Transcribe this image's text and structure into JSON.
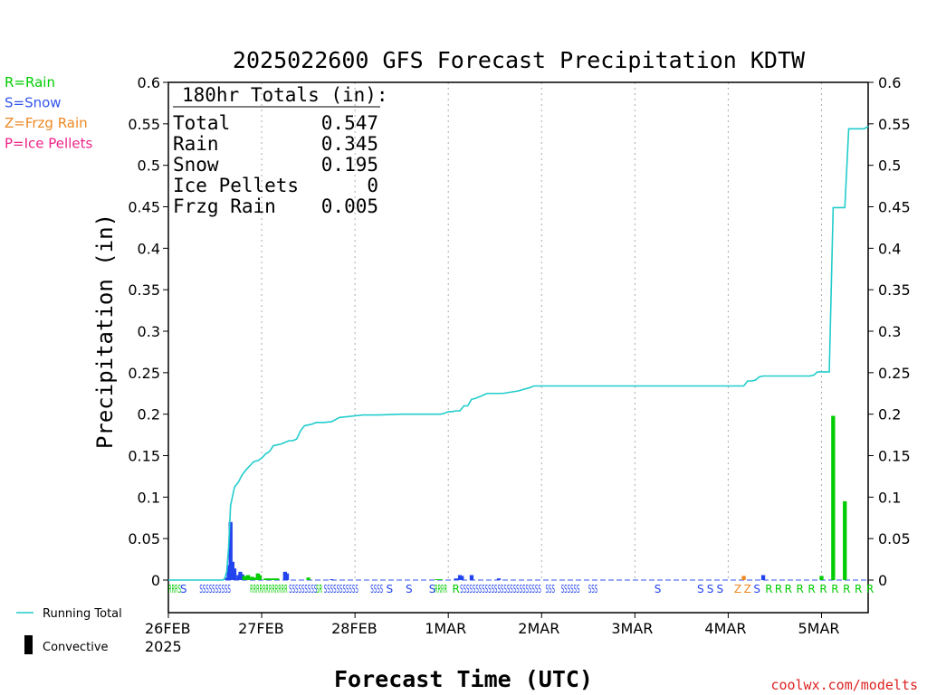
{
  "chart_data": {
    "type": "bar",
    "title": "2025022600 GFS Forecast Precipitation KDTW",
    "xlabel": "Forecast Time (UTC)",
    "ylabel": "Precipitation (in)",
    "ylim": [
      0,
      0.6
    ],
    "xlim_hours": [
      0,
      180
    ],
    "y_ticks": [
      "0",
      "0.05",
      "0.1",
      "0.15",
      "0.2",
      "0.25",
      "0.3",
      "0.35",
      "0.4",
      "0.45",
      "0.5",
      "0.55",
      "0.6"
    ],
    "x_ticks": [
      {
        "label": "26FEB",
        "hour": 0,
        "sub": "2025"
      },
      {
        "label": "27FEB",
        "hour": 24
      },
      {
        "label": "28FEB",
        "hour": 48
      },
      {
        "label": "1MAR",
        "hour": 72
      },
      {
        "label": "2MAR",
        "hour": 96
      },
      {
        "label": "3MAR",
        "hour": 120
      },
      {
        "label": "4MAR",
        "hour": 144
      },
      {
        "label": "5MAR",
        "hour": 168
      }
    ],
    "legend_types": [
      {
        "text": "R=Rain",
        "color": "#00cc00"
      },
      {
        "text": "S=Snow",
        "color": "#3355ee"
      },
      {
        "text": "Z=Frzg Rain",
        "color": "#ee8822"
      },
      {
        "text": "P=Ice Pellets",
        "color": "#ee2288"
      }
    ],
    "legend_series": [
      {
        "text": "Running Total",
        "kind": "line",
        "color": "#22cccc"
      },
      {
        "text": "Convective",
        "kind": "bar",
        "color": "#000000"
      }
    ],
    "totals": {
      "heading": "180hr Totals (in):",
      "rows": [
        {
          "label": "Total",
          "value": "0.547"
        },
        {
          "label": "Rain",
          "value": "0.345"
        },
        {
          "label": "Snow",
          "value": "0.195"
        },
        {
          "label": "Ice Pellets",
          "value": "0"
        },
        {
          "label": "Frzg Rain",
          "value": "0.005"
        }
      ]
    },
    "colors": {
      "R": "#00cc00",
      "S": "#2244ee",
      "Z": "#ee8822",
      "P": "#ee2288",
      "running_total": "#22cccc",
      "grid": "#aaaaaa",
      "axis": "#000000",
      "credit": "#dd2222"
    },
    "bars": [
      {
        "hour": 15,
        "value": 0.003,
        "type": "S"
      },
      {
        "hour": 15.5,
        "value": 0.018,
        "type": "S"
      },
      {
        "hour": 16,
        "value": 0.07,
        "type": "S"
      },
      {
        "hour": 16.5,
        "value": 0.022,
        "type": "S"
      },
      {
        "hour": 17,
        "value": 0.014,
        "type": "S"
      },
      {
        "hour": 18,
        "value": 0.006,
        "type": "S"
      },
      {
        "hour": 18.5,
        "value": 0.01,
        "type": "S"
      },
      {
        "hour": 19,
        "value": 0.007,
        "type": "S"
      },
      {
        "hour": 19.5,
        "value": 0.005,
        "type": "R"
      },
      {
        "hour": 20.5,
        "value": 0.006,
        "type": "R"
      },
      {
        "hour": 21.5,
        "value": 0.004,
        "type": "R"
      },
      {
        "hour": 22.5,
        "value": 0.003,
        "type": "R"
      },
      {
        "hour": 23,
        "value": 0.008,
        "type": "R"
      },
      {
        "hour": 23.5,
        "value": 0.006,
        "type": "R"
      },
      {
        "hour": 25,
        "value": 0.002,
        "type": "R"
      },
      {
        "hour": 26,
        "value": 0.002,
        "type": "R"
      },
      {
        "hour": 27,
        "value": 0.002,
        "type": "R"
      },
      {
        "hour": 28,
        "value": 0.002,
        "type": "R"
      },
      {
        "hour": 30,
        "value": 0.01,
        "type": "S"
      },
      {
        "hour": 30.5,
        "value": 0.008,
        "type": "S"
      },
      {
        "hour": 36,
        "value": 0.003,
        "type": "R"
      },
      {
        "hour": 42,
        "value": 0.001,
        "type": "S"
      },
      {
        "hour": 69,
        "value": 0.001,
        "type": "R"
      },
      {
        "hour": 70,
        "value": 0.001,
        "type": "R"
      },
      {
        "hour": 74,
        "value": 0.002,
        "type": "S"
      },
      {
        "hour": 75,
        "value": 0.006,
        "type": "S"
      },
      {
        "hour": 75.5,
        "value": 0.005,
        "type": "S"
      },
      {
        "hour": 78,
        "value": 0.006,
        "type": "S"
      },
      {
        "hour": 85,
        "value": 0.002,
        "type": "S"
      },
      {
        "hour": 148,
        "value": 0.005,
        "type": "Z"
      },
      {
        "hour": 153,
        "value": 0.006,
        "type": "S"
      },
      {
        "hour": 168,
        "value": 0.005,
        "type": "R"
      },
      {
        "hour": 171,
        "value": 0.198,
        "type": "R"
      },
      {
        "hour": 174,
        "value": 0.095,
        "type": "R"
      }
    ],
    "running_total": {
      "hours": [
        0,
        14,
        14.5,
        15,
        15.5,
        16,
        17,
        18,
        19,
        20,
        21,
        22,
        23,
        24,
        25,
        26,
        27,
        28,
        29,
        30,
        31,
        32,
        33,
        34,
        35,
        36,
        37,
        38,
        40,
        42,
        44,
        46,
        48,
        50,
        54,
        60,
        66,
        68,
        69,
        70,
        71,
        72,
        73,
        74,
        75,
        76,
        77,
        78,
        79,
        82,
        86,
        90,
        93,
        94,
        95,
        96,
        100,
        110,
        120,
        130,
        140,
        146,
        147,
        148,
        149,
        150,
        151,
        152,
        153,
        154,
        155,
        160,
        165,
        166,
        167,
        168,
        169,
        170,
        171,
        172,
        173,
        174,
        175,
        176,
        177,
        178,
        179,
        180
      ],
      "values": [
        0,
        0,
        0.002,
        0.01,
        0.04,
        0.09,
        0.112,
        0.118,
        0.127,
        0.133,
        0.138,
        0.143,
        0.144,
        0.147,
        0.152,
        0.155,
        0.162,
        0.163,
        0.164,
        0.166,
        0.168,
        0.168,
        0.17,
        0.18,
        0.186,
        0.187,
        0.188,
        0.19,
        0.19,
        0.191,
        0.196,
        0.197,
        0.198,
        0.199,
        0.199,
        0.2,
        0.2,
        0.2,
        0.2,
        0.2,
        0.201,
        0.203,
        0.203,
        0.204,
        0.204,
        0.21,
        0.21,
        0.218,
        0.219,
        0.225,
        0.225,
        0.228,
        0.232,
        0.234,
        0.234,
        0.234,
        0.234,
        0.234,
        0.234,
        0.234,
        0.234,
        0.234,
        0.234,
        0.234,
        0.24,
        0.24,
        0.241,
        0.245,
        0.246,
        0.246,
        0.246,
        0.246,
        0.246,
        0.247,
        0.251,
        0.251,
        0.251,
        0.251,
        0.449,
        0.449,
        0.449,
        0.449,
        0.544,
        0.544,
        0.544,
        0.544,
        0.544,
        0.547
      ]
    },
    "precip_type_labels": [
      {
        "hour": 0,
        "text": "RRRS",
        "type": "R"
      },
      {
        "hour": 3,
        "text": "S",
        "type": "S"
      },
      {
        "hour": 8,
        "text": "SSSSSSSSSS",
        "type": "S"
      },
      {
        "hour": 21,
        "text": "RRRRRRRRRRRR",
        "type": "R"
      },
      {
        "hour": 31,
        "text": "SSSSSSSSS",
        "type": "S"
      },
      {
        "hour": 38,
        "text": "SR",
        "type": "R"
      },
      {
        "hour": 40,
        "text": "SSSSSSSSSSS",
        "type": "S"
      },
      {
        "hour": 52,
        "text": "SSSS",
        "type": "S"
      },
      {
        "hour": 56,
        "text": "S",
        "type": "S"
      },
      {
        "hour": 61,
        "text": "S",
        "type": "S"
      },
      {
        "hour": 67,
        "text": "S",
        "type": "S"
      },
      {
        "hour": 68.5,
        "text": "RRRR",
        "type": "R"
      },
      {
        "hour": 73,
        "text": "R",
        "type": "R"
      },
      {
        "hour": 75,
        "text": "SSSSSSSSSSSSSSSSSSSSSSSSSS",
        "type": "S"
      },
      {
        "hour": 97,
        "text": "SSS",
        "type": "S"
      },
      {
        "hour": 101,
        "text": "SSSSSS",
        "type": "S"
      },
      {
        "hour": 108,
        "text": "SSS",
        "type": "S"
      },
      {
        "hour": 125,
        "text": "S",
        "type": "S"
      },
      {
        "hour": 136,
        "text": "S",
        "type": "S"
      },
      {
        "hour": 138.5,
        "text": "S",
        "type": "S"
      },
      {
        "hour": 141,
        "text": "S",
        "type": "S"
      },
      {
        "hour": 145.5,
        "text": "Z",
        "type": "Z"
      },
      {
        "hour": 148,
        "text": "Z",
        "type": "Z"
      },
      {
        "hour": 150.5,
        "text": "S",
        "type": "S"
      },
      {
        "hour": 153.5,
        "text": "R",
        "type": "R"
      },
      {
        "hour": 156,
        "text": "R",
        "type": "R"
      },
      {
        "hour": 158.5,
        "text": "R",
        "type": "R"
      },
      {
        "hour": 161.5,
        "text": "R",
        "type": "R"
      },
      {
        "hour": 164.5,
        "text": "R",
        "type": "R"
      },
      {
        "hour": 167.5,
        "text": "R",
        "type": "R"
      },
      {
        "hour": 170.5,
        "text": "R",
        "type": "R"
      },
      {
        "hour": 173.5,
        "text": "R",
        "type": "R"
      },
      {
        "hour": 176.5,
        "text": "R",
        "type": "R"
      },
      {
        "hour": 179.5,
        "text": "R",
        "type": "R"
      }
    ],
    "credit": "coolwx.com/modelts"
  }
}
